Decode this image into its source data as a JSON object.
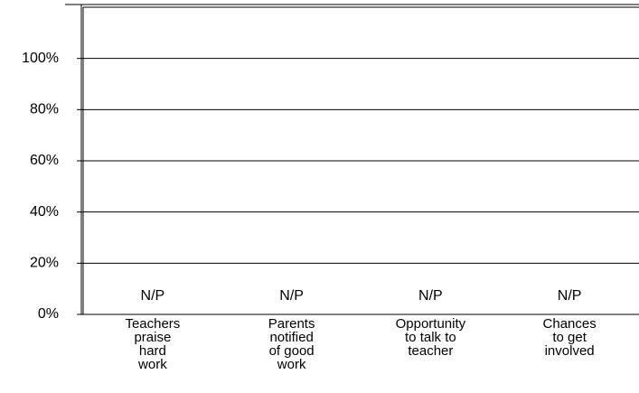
{
  "chart_data": {
    "type": "bar",
    "categories": [
      "Teachers\npraise\nhard\nwork",
      "Parents\nnotified\nof good\nwork",
      "Opportunity\nto talk to\nteacher",
      "Chances\nto get\ninvolved"
    ],
    "values": [
      null,
      null,
      null,
      null
    ],
    "value_labels": [
      "N/P",
      "N/P",
      "N/P",
      "N/P"
    ],
    "color": "#808080",
    "ylim": [
      0,
      120
    ],
    "yticks": [
      {
        "value": 0,
        "label": "0%"
      },
      {
        "value": 20,
        "label": "20%"
      },
      {
        "value": 40,
        "label": "40%"
      },
      {
        "value": 60,
        "label": "60%"
      },
      {
        "value": 80,
        "label": "80%"
      },
      {
        "value": 100,
        "label": "100%"
      }
    ],
    "grid": true
  }
}
